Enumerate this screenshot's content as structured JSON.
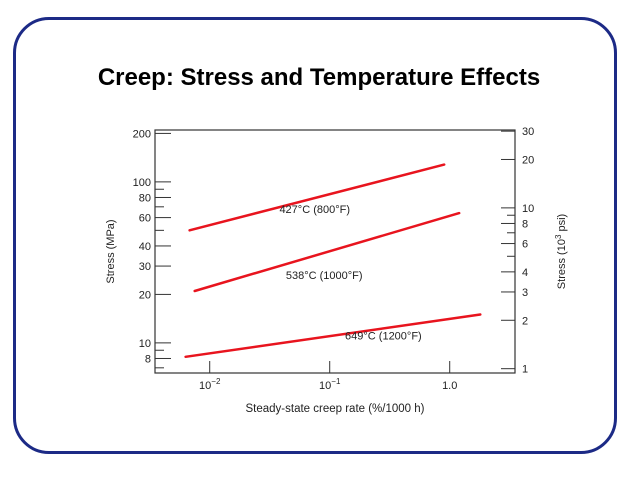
{
  "slide": {
    "title": "Creep: Stress and Temperature Effects",
    "border_color": "#1c2a86"
  },
  "chart_data": {
    "type": "line",
    "xlabel": "Steady-state creep rate (%/1000 h)",
    "ylabel": "Stress (MPa)",
    "ylabel_right": "Stress (10^3 psi)",
    "xscale": "log",
    "yscale": "log",
    "xlim": [
      0.0035,
      3.5
    ],
    "ylim": [
      6.5,
      210
    ],
    "ylim_right": [
      0.94,
      30.5
    ],
    "x_ticks": [
      {
        "value": 0.01,
        "base": "10",
        "exp": "−2"
      },
      {
        "value": 0.1,
        "base": "10",
        "exp": "−1"
      },
      {
        "value": 1.0,
        "base": "1.0",
        "exp": ""
      }
    ],
    "y_ticks_left": [
      {
        "value": 200,
        "label": "200"
      },
      {
        "value": 100,
        "label": "100"
      },
      {
        "value": 80,
        "label": "80"
      },
      {
        "value": 60,
        "label": "60"
      },
      {
        "value": 40,
        "label": "40"
      },
      {
        "value": 30,
        "label": "30"
      },
      {
        "value": 20,
        "label": "20"
      },
      {
        "value": 10,
        "label": "10"
      },
      {
        "value": 8,
        "label": "8"
      }
    ],
    "y_minor_left": [
      90,
      70,
      50,
      9,
      7
    ],
    "y_ticks_right": [
      {
        "value": 30,
        "label": "30"
      },
      {
        "value": 20,
        "label": "20"
      },
      {
        "value": 10,
        "label": "10"
      },
      {
        "value": 8,
        "label": "8"
      },
      {
        "value": 6,
        "label": "6"
      },
      {
        "value": 4,
        "label": "4"
      },
      {
        "value": 3,
        "label": "3"
      },
      {
        "value": 2,
        "label": "2"
      },
      {
        "value": 1,
        "label": "1"
      }
    ],
    "y_minor_right": [
      9,
      7,
      5
    ],
    "line_color": "#e8141e",
    "series": [
      {
        "name": "427°C (800°F)",
        "x": [
          0.0068,
          0.9
        ],
        "y": [
          50,
          128
        ],
        "label_x": 0.075,
        "label_y": 64
      },
      {
        "name": "538°C (1000°F)",
        "x": [
          0.0075,
          1.2
        ],
        "y": [
          21,
          64
        ],
        "label_x": 0.09,
        "label_y": 25
      },
      {
        "name": "649°C (1200°F)",
        "x": [
          0.0063,
          1.8
        ],
        "y": [
          8.2,
          15
        ],
        "label_x": 0.28,
        "label_y": 10.5
      }
    ],
    "grid": false
  }
}
